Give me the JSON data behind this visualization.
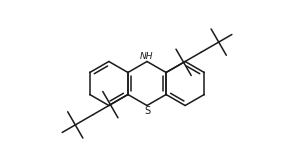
{
  "bg_color": "#ffffff",
  "line_color": "#1a1a1a",
  "line_width": 1.1,
  "font_size_nh": 6.5,
  "font_size_s": 7,
  "nh_label": "NH",
  "s_label": "S",
  "figsize": [
    2.94,
    1.67
  ],
  "dpi": 100
}
